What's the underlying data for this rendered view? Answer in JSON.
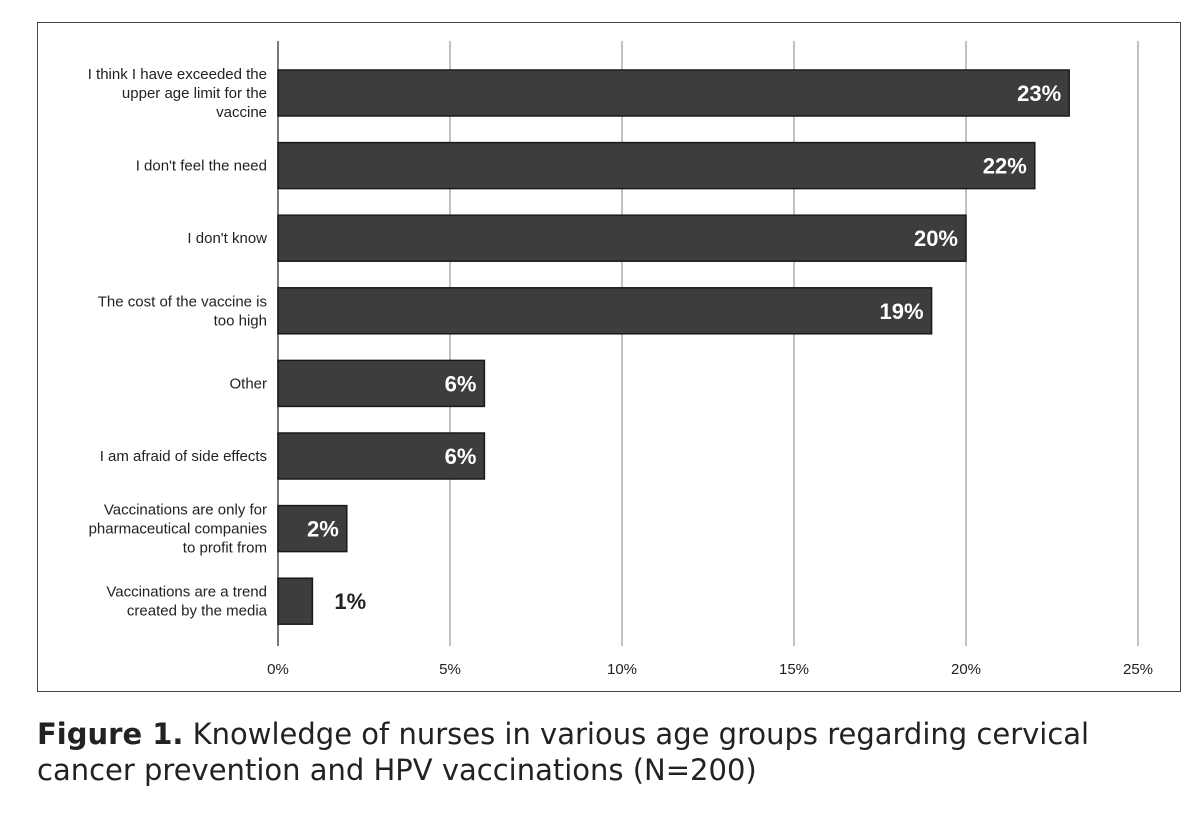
{
  "chart_data": {
    "type": "bar",
    "orientation": "horizontal",
    "categories": [
      [
        "I think I have exceeded the",
        "upper age limit for the",
        "vaccine"
      ],
      [
        "I don't feel the need"
      ],
      [
        "I don't know"
      ],
      [
        "The cost of the vaccine is",
        "too high"
      ],
      [
        "Other"
      ],
      [
        "I am afraid of side effects"
      ],
      [
        "Vaccinations are only for",
        "pharmaceutical companies",
        "to profit from"
      ],
      [
        "Vaccinations are a trend",
        "created by the media"
      ]
    ],
    "values": [
      23,
      22,
      20,
      19,
      6,
      6,
      2,
      1
    ],
    "data_labels": [
      "23%",
      "22%",
      "20%",
      "19%",
      "6%",
      "6%",
      "2%",
      "1%"
    ],
    "xlim": [
      0,
      25
    ],
    "xticks": [
      0,
      5,
      10,
      15,
      20,
      25
    ],
    "xtick_labels": [
      "0%",
      "5%",
      "10%",
      "15%",
      "20%",
      "25%"
    ],
    "grid": true,
    "colors": {
      "bar": "#3d3d3d",
      "bar_edge": "#1a1a1a",
      "grid": "#9a9a9a",
      "label_inside": "#ffffff",
      "label_outside": "#222222"
    }
  },
  "caption": {
    "figure_label": "Figure 1.",
    "text": " Knowledge of nurses in various age groups regarding cervical cancer prevention and HPV vaccinations (N=200)"
  }
}
